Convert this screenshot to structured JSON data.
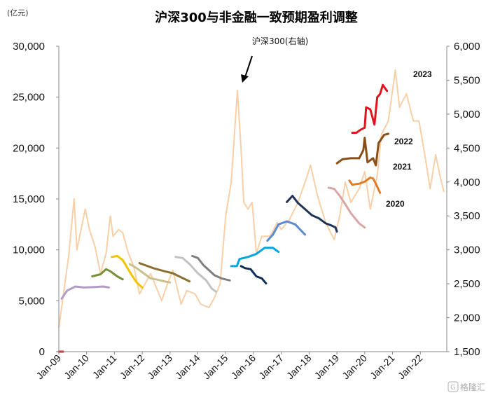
{
  "chart_data": {
    "type": "line",
    "title": "沪深300与非金融一致预期盈利调整",
    "left_unit": "(亿元)",
    "ylim": [
      0,
      30000
    ],
    "y_ticks": [
      "0",
      "5,000",
      "10,000",
      "15,000",
      "20,000",
      "25,000",
      "30,000"
    ],
    "y2lim": [
      1500,
      6000
    ],
    "y2_ticks": [
      "1,500",
      "2,000",
      "2,500",
      "3,000",
      "3,500",
      "4,000",
      "4,500",
      "5,000",
      "5,500",
      "6,000"
    ],
    "x_range": [
      2009.0,
      2022.95
    ],
    "x_ticks": [
      "Jan-09",
      "Jan-10",
      "Jan-11",
      "Jan-12",
      "Jan-13",
      "Jan-14",
      "Jan-15",
      "Jan-16",
      "Jan-17",
      "Jan-18",
      "Jan-19",
      "Jan-20",
      "Jan-21",
      "Jan-22"
    ],
    "grid": false,
    "index_series": {
      "name": "沪深300(右轴)",
      "axis": "right",
      "color": "#f8cfa6",
      "points": [
        [
          2009.0,
          1850
        ],
        [
          2009.15,
          2300
        ],
        [
          2009.35,
          2900
        ],
        [
          2009.55,
          3750
        ],
        [
          2009.65,
          3000
        ],
        [
          2009.8,
          3300
        ],
        [
          2009.95,
          3600
        ],
        [
          2010.1,
          3300
        ],
        [
          2010.3,
          3050
        ],
        [
          2010.5,
          2650
        ],
        [
          2010.7,
          2950
        ],
        [
          2010.85,
          3500
        ],
        [
          2010.95,
          3200
        ],
        [
          2011.15,
          3300
        ],
        [
          2011.3,
          3250
        ],
        [
          2011.5,
          2950
        ],
        [
          2011.7,
          2750
        ],
        [
          2011.9,
          2350
        ],
        [
          2012.1,
          2500
        ],
        [
          2012.3,
          2650
        ],
        [
          2012.5,
          2450
        ],
        [
          2012.7,
          2250
        ],
        [
          2012.95,
          2550
        ],
        [
          2013.1,
          2700
        ],
        [
          2013.4,
          2200
        ],
        [
          2013.6,
          2400
        ],
        [
          2013.9,
          2350
        ],
        [
          2014.1,
          2200
        ],
        [
          2014.4,
          2150
        ],
        [
          2014.6,
          2300
        ],
        [
          2014.8,
          2500
        ],
        [
          2015.0,
          3500
        ],
        [
          2015.2,
          4000
        ],
        [
          2015.42,
          5350
        ],
        [
          2015.55,
          4500
        ],
        [
          2015.65,
          3700
        ],
        [
          2015.8,
          3600
        ],
        [
          2015.95,
          3700
        ],
        [
          2016.1,
          2950
        ],
        [
          2016.3,
          3200
        ],
        [
          2016.6,
          3200
        ],
        [
          2016.85,
          3400
        ],
        [
          2017.0,
          3300
        ],
        [
          2017.3,
          3450
        ],
        [
          2017.6,
          3700
        ],
        [
          2017.9,
          4050
        ],
        [
          2018.05,
          4250
        ],
        [
          2018.3,
          3800
        ],
        [
          2018.6,
          3400
        ],
        [
          2018.9,
          3150
        ],
        [
          2019.1,
          3500
        ],
        [
          2019.3,
          4000
        ],
        [
          2019.5,
          3700
        ],
        [
          2019.8,
          3900
        ],
        [
          2020.0,
          4150
        ],
        [
          2020.2,
          3600
        ],
        [
          2020.45,
          4100
        ],
        [
          2020.6,
          4700
        ],
        [
          2020.85,
          4900
        ],
        [
          2021.1,
          5650
        ],
        [
          2021.25,
          5100
        ],
        [
          2021.5,
          5300
        ],
        [
          2021.75,
          4900
        ],
        [
          2021.95,
          4900
        ],
        [
          2022.2,
          4300
        ],
        [
          2022.35,
          3900
        ],
        [
          2022.55,
          4400
        ],
        [
          2022.7,
          4100
        ],
        [
          2022.85,
          3850
        ]
      ]
    },
    "series": [
      {
        "color": "#b39bc8",
        "points": [
          [
            2009.1,
            5200
          ],
          [
            2009.3,
            6000
          ],
          [
            2009.6,
            6400
          ],
          [
            2009.9,
            6300
          ],
          [
            2010.3,
            6350
          ],
          [
            2010.6,
            6400
          ],
          [
            2010.8,
            6300
          ]
        ]
      },
      {
        "color": "#7a8f3a",
        "points": [
          [
            2010.2,
            7400
          ],
          [
            2010.5,
            7600
          ],
          [
            2010.7,
            8100
          ],
          [
            2010.85,
            7900
          ],
          [
            2011.1,
            7400
          ],
          [
            2011.3,
            7100
          ]
        ]
      },
      {
        "color": "#f2c300",
        "points": [
          [
            2010.9,
            9300
          ],
          [
            2011.1,
            9400
          ],
          [
            2011.3,
            9000
          ],
          [
            2011.6,
            7600
          ],
          [
            2011.8,
            6800
          ],
          [
            2012.0,
            6300
          ]
        ]
      },
      {
        "color": "#c9c08b",
        "points": [
          [
            2011.55,
            8600
          ],
          [
            2011.8,
            8200
          ],
          [
            2012.1,
            7600
          ],
          [
            2012.3,
            7200
          ],
          [
            2012.5,
            7100
          ],
          [
            2012.8,
            6900
          ],
          [
            2013.0,
            6800
          ]
        ]
      },
      {
        "color": "#8b6f2f",
        "points": [
          [
            2011.9,
            8700
          ],
          [
            2012.1,
            8500
          ],
          [
            2012.4,
            8200
          ],
          [
            2012.8,
            7900
          ],
          [
            2013.1,
            7700
          ],
          [
            2013.4,
            7300
          ],
          [
            2013.7,
            6900
          ]
        ]
      },
      {
        "color": "#c3c2c2",
        "points": [
          [
            2013.2,
            9300
          ],
          [
            2013.45,
            9200
          ],
          [
            2013.7,
            8600
          ],
          [
            2014.0,
            7700
          ],
          [
            2014.3,
            7000
          ],
          [
            2014.5,
            6200
          ],
          [
            2014.65,
            5900
          ]
        ]
      },
      {
        "color": "#7f7f7f",
        "points": [
          [
            2013.8,
            9400
          ],
          [
            2014.0,
            9200
          ],
          [
            2014.2,
            8500
          ],
          [
            2014.4,
            8000
          ],
          [
            2014.6,
            7500
          ],
          [
            2014.85,
            7200
          ],
          [
            2015.15,
            7000
          ]
        ]
      },
      {
        "color": "#0d2e57",
        "points": [
          [
            2015.55,
            8400
          ],
          [
            2015.7,
            8200
          ],
          [
            2015.9,
            8100
          ],
          [
            2016.1,
            7400
          ],
          [
            2016.3,
            7200
          ],
          [
            2016.45,
            6700
          ]
        ]
      },
      {
        "color": "#00a6e0",
        "points": [
          [
            2015.2,
            8400
          ],
          [
            2015.4,
            8400
          ],
          [
            2015.5,
            9100
          ],
          [
            2015.8,
            9300
          ],
          [
            2016.1,
            9600
          ],
          [
            2016.4,
            10200
          ],
          [
            2016.7,
            10200
          ],
          [
            2016.9,
            9800
          ]
        ]
      },
      {
        "color": "#5b8cd0",
        "points": [
          [
            2016.5,
            10900
          ],
          [
            2016.7,
            11500
          ],
          [
            2016.9,
            12500
          ],
          [
            2017.2,
            12800
          ],
          [
            2017.5,
            12500
          ],
          [
            2017.85,
            11500
          ]
        ]
      },
      {
        "color": "#1f3357",
        "points": [
          [
            2017.2,
            14700
          ],
          [
            2017.4,
            15300
          ],
          [
            2017.6,
            14600
          ],
          [
            2017.85,
            14000
          ],
          [
            2018.1,
            13400
          ],
          [
            2018.35,
            13100
          ],
          [
            2018.6,
            12600
          ],
          [
            2018.8,
            12400
          ],
          [
            2018.95,
            12200
          ],
          [
            2019.0,
            11800
          ]
        ]
      },
      {
        "color": "#d9a6a6",
        "points": [
          [
            2018.7,
            16100
          ],
          [
            2018.9,
            16000
          ],
          [
            2019.1,
            15300
          ],
          [
            2019.3,
            14500
          ],
          [
            2019.5,
            13600
          ],
          [
            2019.8,
            12600
          ],
          [
            2020.0,
            12200
          ]
        ]
      },
      {
        "color": "#e07b28",
        "points": [
          [
            2019.45,
            16800
          ],
          [
            2019.55,
            16400
          ],
          [
            2019.8,
            16500
          ],
          [
            2020.0,
            16700
          ],
          [
            2020.2,
            17100
          ],
          [
            2020.3,
            17000
          ],
          [
            2020.4,
            16500
          ],
          [
            2020.55,
            15600
          ]
        ]
      },
      {
        "color": "#8b4e16",
        "points": [
          [
            2019.0,
            18500
          ],
          [
            2019.2,
            18900
          ],
          [
            2019.5,
            19000
          ],
          [
            2019.8,
            19000
          ],
          [
            2019.95,
            19800
          ],
          [
            2020.0,
            21000
          ],
          [
            2020.1,
            18600
          ],
          [
            2020.3,
            19000
          ],
          [
            2020.4,
            18300
          ],
          [
            2020.5,
            20500
          ],
          [
            2020.7,
            21300
          ],
          [
            2020.85,
            21400
          ]
        ]
      },
      {
        "color": "#e0141c",
        "points": [
          [
            2009.0,
            0
          ],
          [
            2009.15,
            0
          ],
          null,
          [
            2019.55,
            21500
          ],
          [
            2019.7,
            21500
          ],
          [
            2019.85,
            21800
          ],
          [
            2020.0,
            22000
          ],
          [
            2020.05,
            24000
          ],
          [
            2020.2,
            23800
          ],
          [
            2020.35,
            22300
          ],
          [
            2020.45,
            25000
          ],
          [
            2020.55,
            25300
          ],
          [
            2020.65,
            26200
          ],
          [
            2020.8,
            25600
          ]
        ]
      }
    ],
    "annotations": {
      "index_label": "沪深300(右轴)",
      "year_labels": [
        "2023",
        "2022",
        "2021",
        "2020"
      ]
    }
  },
  "watermark": "格隆汇"
}
